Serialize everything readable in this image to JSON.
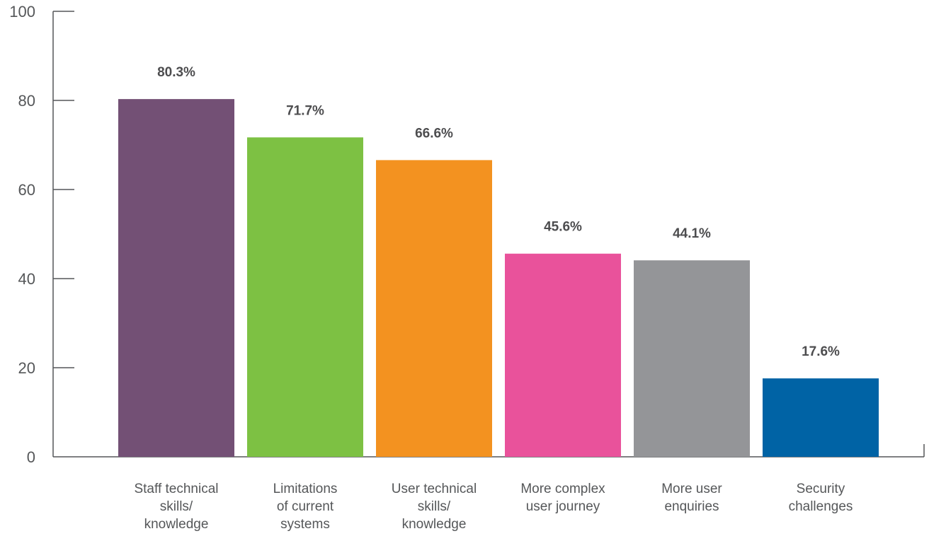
{
  "chart_data": {
    "type": "bar",
    "categories": [
      [
        "Staff technical",
        "skills/",
        "knowledge"
      ],
      [
        "Limitations",
        "of current",
        "systems"
      ],
      [
        "User technical",
        "skills/",
        "knowledge"
      ],
      [
        "More complex",
        "user journey"
      ],
      [
        "More user",
        "enquiries"
      ],
      [
        "Security",
        "challenges"
      ]
    ],
    "values": [
      80.3,
      71.7,
      66.6,
      45.6,
      44.1,
      17.6
    ],
    "data_labels": [
      "80.3%",
      "71.7%",
      "66.6%",
      "45.6%",
      "44.1%",
      "17.6%"
    ],
    "colors": [
      "#735075",
      "#7dc143",
      "#f39220",
      "#e9529b",
      "#949598",
      "#0063a5"
    ],
    "ylim": [
      0,
      100
    ],
    "yticks": [
      "0",
      "20",
      "40",
      "60",
      "80",
      "100"
    ],
    "title": "",
    "xlabel": "",
    "ylabel": "",
    "grid": false,
    "legend": "none"
  }
}
